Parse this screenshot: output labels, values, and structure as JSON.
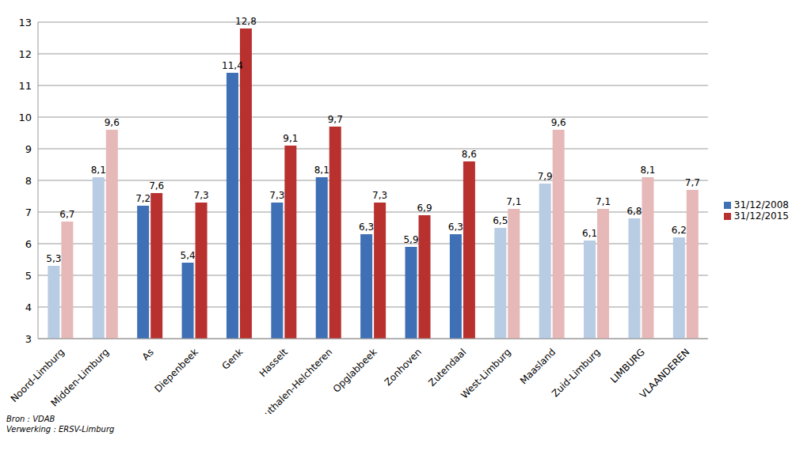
{
  "chart_data": {
    "type": "bar",
    "categories": [
      "Noord-Limburg",
      "Midden-Limburg",
      "As",
      "Diepenbeek",
      "Genk",
      "Hasselt",
      "Houthalen-Helchteren",
      "Opglabbeek",
      "Zonhoven",
      "Zutendaal",
      "West-Limburg",
      "Maasland",
      "Zuid-Limburg",
      "LIMBURG",
      "VLAANDEREN"
    ],
    "series": [
      {
        "name": "31/12/2008",
        "color": "#3f6fb5",
        "colors": [
          "#b8cce4",
          "#b8cce4",
          "#3f6fb5",
          "#3f6fb5",
          "#3f6fb5",
          "#3f6fb5",
          "#3f6fb5",
          "#3f6fb5",
          "#3f6fb5",
          "#3f6fb5",
          "#b8cce4",
          "#b8cce4",
          "#b8cce4",
          "#b8cce4",
          "#b8cce4"
        ],
        "values": [
          5.3,
          8.1,
          7.2,
          5.4,
          11.4,
          7.3,
          8.1,
          6.3,
          5.9,
          6.3,
          6.5,
          7.9,
          6.1,
          6.8,
          6.2
        ],
        "value_labels": [
          "5,3",
          "8,1",
          "7,2",
          "5,4",
          "11,4",
          "7,3",
          "8,1",
          "6,3",
          "5,9",
          "6,3",
          "6,5",
          "7,9",
          "6,1",
          "6,8",
          "6,2"
        ]
      },
      {
        "name": "31/12/2015",
        "color": "#b8312f",
        "colors": [
          "#e6b9b8",
          "#e6b9b8",
          "#b8312f",
          "#b8312f",
          "#b8312f",
          "#b8312f",
          "#b8312f",
          "#b8312f",
          "#b8312f",
          "#b8312f",
          "#e6b9b8",
          "#e6b9b8",
          "#e6b9b8",
          "#e6b9b8",
          "#e6b9b8"
        ],
        "values": [
          6.7,
          9.6,
          7.6,
          7.3,
          12.8,
          9.1,
          9.7,
          7.3,
          6.9,
          8.6,
          7.1,
          9.6,
          7.1,
          8.1,
          7.7
        ],
        "value_labels": [
          "6,7",
          "9,6",
          "7,6",
          "7,3",
          "12,8",
          "9,1",
          "9,7",
          "7,3",
          "6,9",
          "8,6",
          "7,1",
          "9,6",
          "7,1",
          "8,1",
          "7,7"
        ]
      }
    ],
    "ylim": [
      3,
      13
    ],
    "yticks": [
      3,
      4,
      5,
      6,
      7,
      8,
      9,
      10,
      11,
      12,
      13
    ],
    "grid": true,
    "legend": "right",
    "data_labels": true,
    "annotations": [
      "Bron : VDAB",
      "Verwerking : ERSV-Limburg"
    ]
  }
}
